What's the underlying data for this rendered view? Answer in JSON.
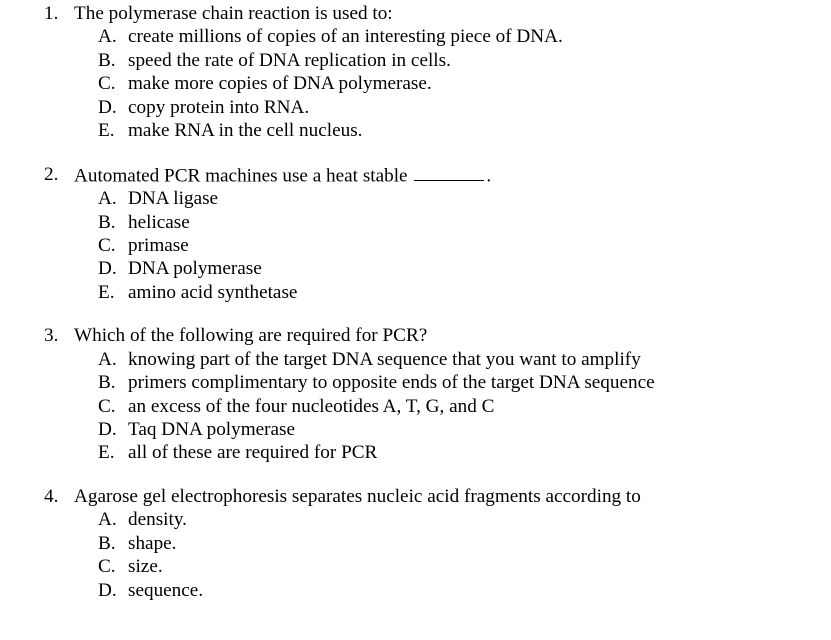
{
  "document": {
    "font_family": "Times New Roman",
    "font_size_pt": 14.4,
    "text_color": "#000000",
    "background_color": "#ffffff"
  },
  "questions": [
    {
      "number": "1.",
      "stem": "The polymerase chain reaction is used to:",
      "options": [
        {
          "letter": "A.",
          "text": "create millions of copies of an interesting piece of DNA."
        },
        {
          "letter": "B.",
          "text": "speed the rate of DNA replication in cells."
        },
        {
          "letter": "C.",
          "text": "make more copies of DNA polymerase."
        },
        {
          "letter": "D.",
          "text": "copy protein into RNA."
        },
        {
          "letter": "E.",
          "text": "make RNA in the cell nucleus."
        }
      ]
    },
    {
      "number": "2.",
      "stem_before": "Automated PCR machines use a heat stable ",
      "has_blank": true,
      "stem_after": ".",
      "options": [
        {
          "letter": "A.",
          "text": "DNA ligase"
        },
        {
          "letter": "B.",
          "text": "helicase"
        },
        {
          "letter": "C.",
          "text": "primase"
        },
        {
          "letter": "D.",
          "text": "DNA polymerase"
        },
        {
          "letter": "E.",
          "text": "amino acid synthetase"
        }
      ]
    },
    {
      "number": "3.",
      "stem": "Which of the following are required for PCR?",
      "options": [
        {
          "letter": "A.",
          "text": "knowing part of the target DNA sequence that you want to amplify"
        },
        {
          "letter": "B.",
          "text": "primers complimentary to opposite ends of the target DNA sequence"
        },
        {
          "letter": "C.",
          "text": "an excess of the four nucleotides A, T, G, and C"
        },
        {
          "letter": "D.",
          "text": "Taq DNA polymerase"
        },
        {
          "letter": "E.",
          "text": "all of these are required for PCR"
        }
      ]
    },
    {
      "number": "4.",
      "stem": "Agarose gel electrophoresis separates nucleic acid fragments according to",
      "options": [
        {
          "letter": "A.",
          "text": "density."
        },
        {
          "letter": "B.",
          "text": "shape."
        },
        {
          "letter": "C.",
          "text": "size."
        },
        {
          "letter": "D.",
          "text": "sequence."
        }
      ]
    }
  ]
}
